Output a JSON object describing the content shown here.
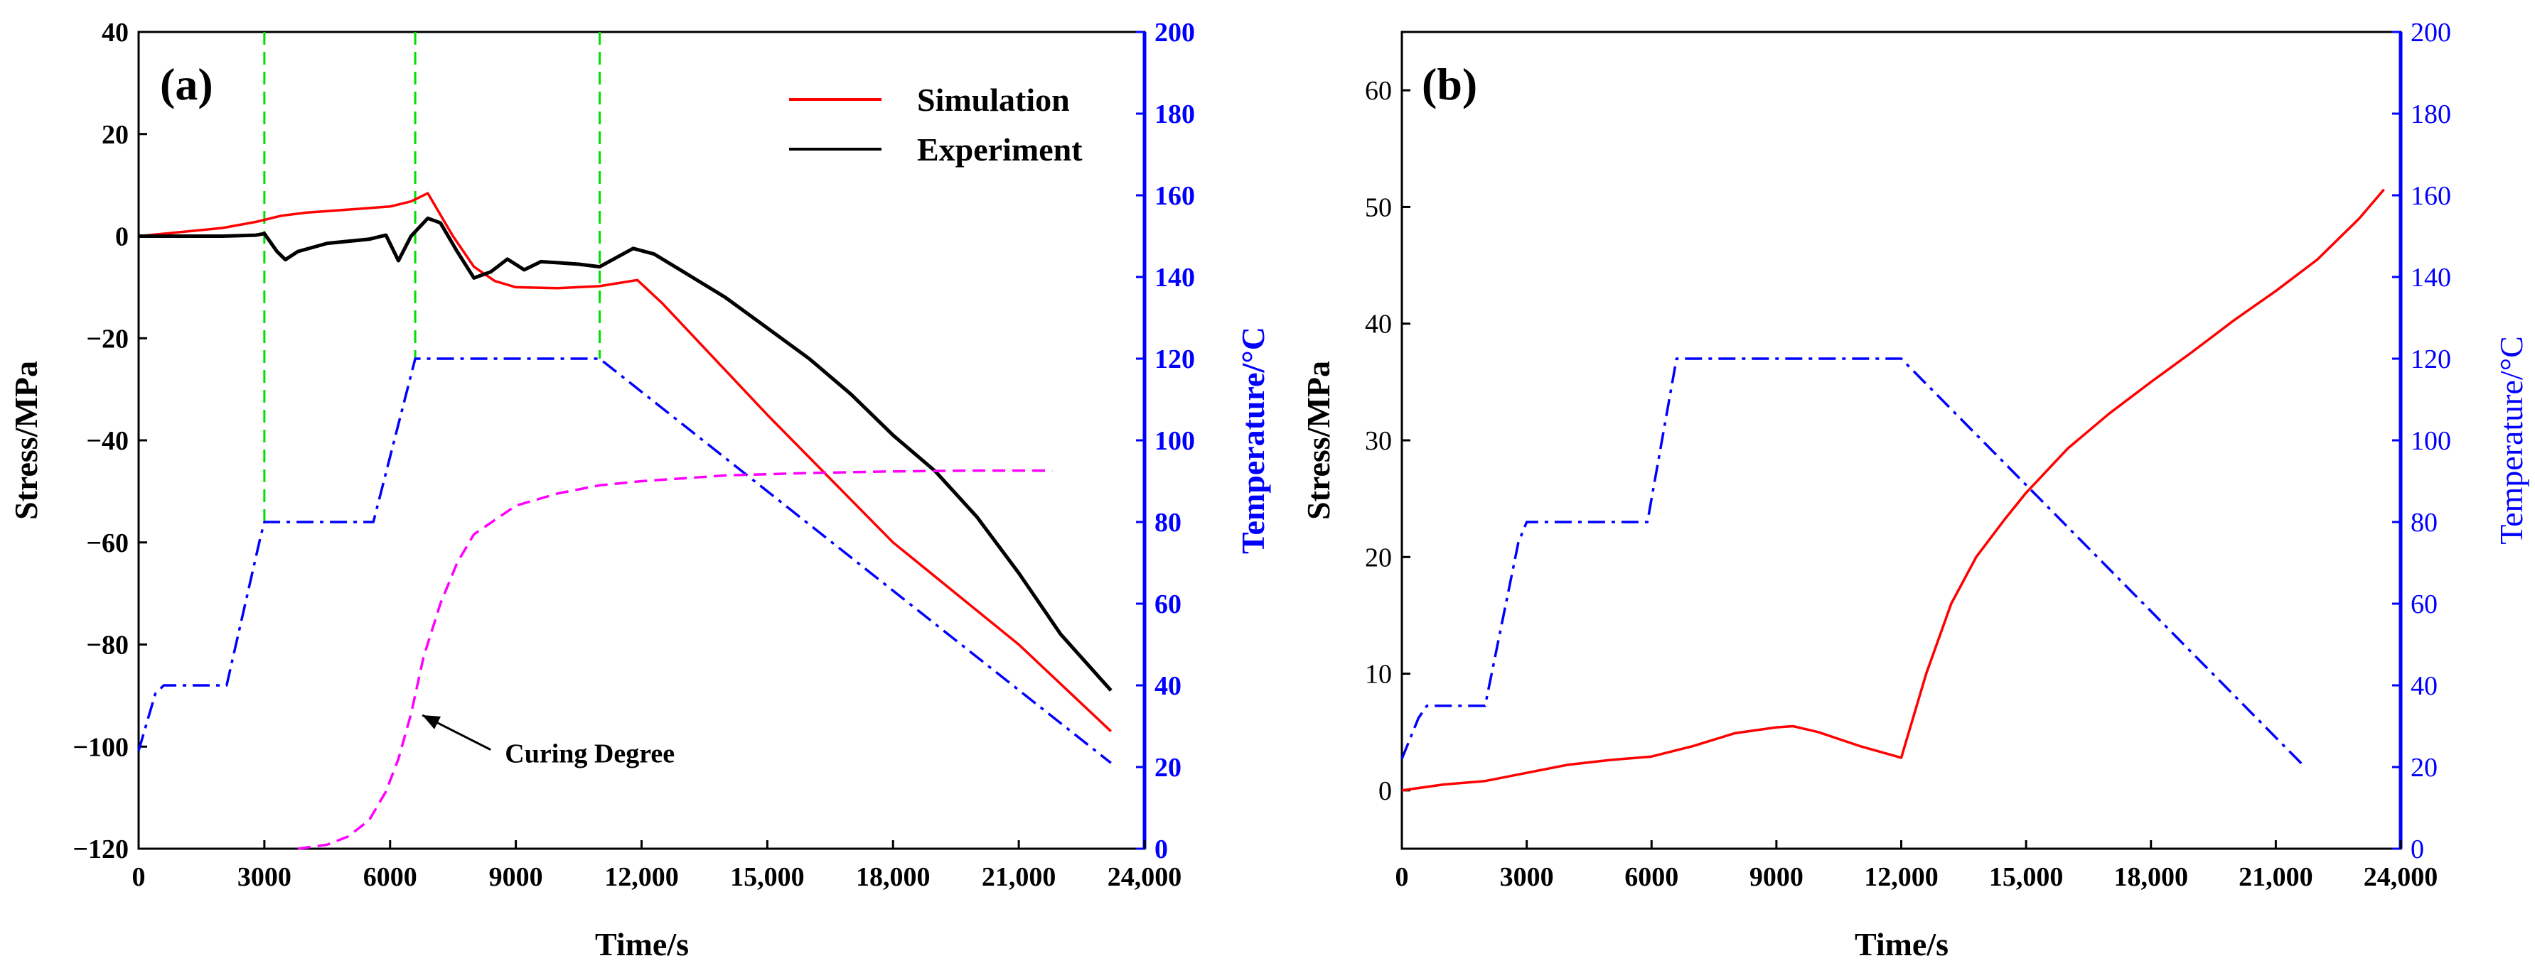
{
  "chart_data": [
    {
      "panel": "(a)",
      "type": "line",
      "xlabel": "Time/s",
      "ylabel": "Stress/MPa",
      "y2label": "Temperature/°C",
      "xlim": [
        0,
        24000
      ],
      "ylim": [
        -120,
        40
      ],
      "y2lim": [
        0,
        200
      ],
      "xticks": [
        "0",
        "3000",
        "6000",
        "9000",
        "12,000",
        "15,000",
        "18,000",
        "21,000",
        "24,000"
      ],
      "xtick_values": [
        0,
        3000,
        6000,
        9000,
        12000,
        15000,
        18000,
        21000,
        24000
      ],
      "yticks": [
        "40",
        "20",
        "0",
        "−20",
        "−40",
        "−60",
        "−80",
        "−100",
        "−120"
      ],
      "ytick_values": [
        40,
        20,
        0,
        -20,
        -40,
        -60,
        -80,
        -100,
        -120
      ],
      "y2ticks": [
        "200",
        "180",
        "160",
        "140",
        "120",
        "100",
        "80",
        "60",
        "40",
        "20",
        "0"
      ],
      "y2tick_values": [
        200,
        180,
        160,
        140,
        120,
        100,
        80,
        60,
        40,
        20,
        0
      ],
      "legend": [
        {
          "name": "Simulation",
          "color": "#ff0000"
        },
        {
          "name": "Experiment",
          "color": "#000000"
        }
      ],
      "legend_position": "top-right",
      "annotation": "Curing Degree",
      "annotation_target": [
        6600,
        -93
      ],
      "annotation_text_at": [
        8400,
        -102
      ],
      "vlines": [
        3000,
        6600,
        11000
      ],
      "series": [
        {
          "name": "Simulation",
          "axis": "left",
          "color": "#ff0000",
          "dash": "solid",
          "x": [
            0,
            1000,
            2000,
            2800,
            3400,
            4000,
            5000,
            6000,
            6500,
            6900,
            7500,
            8000,
            8500,
            9000,
            10000,
            11000,
            11900,
            12500,
            15000,
            18000,
            21000,
            23200
          ],
          "y": [
            0,
            0.8,
            1.6,
            2.8,
            4,
            4.6,
            5.2,
            5.8,
            6.8,
            8.4,
            0,
            -6,
            -8.8,
            -10,
            -10.2,
            -9.8,
            -8.6,
            -13.2,
            -35,
            -60,
            -80,
            -97
          ]
        },
        {
          "name": "Experiment",
          "axis": "left",
          "color": "#000000",
          "dash": "solid",
          "x": [
            0,
            1000,
            2000,
            2800,
            3000,
            3300,
            3500,
            3800,
            4500,
            5500,
            5900,
            6200,
            6500,
            6900,
            7200,
            7600,
            8000,
            8400,
            8800,
            9200,
            9600,
            10000,
            10500,
            11000,
            11400,
            11800,
            12300,
            13000,
            14000,
            15000,
            16000,
            17000,
            18000,
            19000,
            20000,
            21000,
            22000,
            23200
          ],
          "y": [
            0,
            0,
            0,
            0.2,
            0.5,
            -3,
            -4.6,
            -3,
            -1.4,
            -0.6,
            0.2,
            -4.8,
            0,
            3.5,
            2.6,
            -3,
            -8.2,
            -7,
            -4.5,
            -6.6,
            -5,
            -5.2,
            -5.5,
            -6,
            -4.2,
            -2.4,
            -3.5,
            -7,
            -12,
            -18,
            -24,
            -31,
            -39,
            -46,
            -55,
            -66,
            -78,
            -89
          ]
        },
        {
          "name": "Temperature",
          "axis": "right",
          "color": "#0000ff",
          "dash": "dashdot",
          "x": [
            0,
            400,
            600,
            2100,
            2900,
            3000,
            5600,
            6600,
            11000,
            23200
          ],
          "y": [
            24,
            38,
            40,
            40,
            76,
            80,
            80,
            120,
            120,
            21
          ]
        },
        {
          "name": "Curing Degree",
          "axis": "right",
          "color": "#ff00ff",
          "dash": "dashed",
          "x": [
            3800,
            4500,
            5000,
            5500,
            5900,
            6200,
            6500,
            6800,
            7200,
            7600,
            8000,
            9000,
            10000,
            11000,
            12000,
            14000,
            16000,
            18000,
            20000,
            21800
          ],
          "y": [
            0,
            1,
            3,
            7,
            14,
            22,
            33,
            47,
            60,
            70,
            77,
            84,
            87,
            89,
            90,
            91.4,
            92,
            92.4,
            92.6,
            92.6
          ]
        }
      ]
    },
    {
      "panel": "(b)",
      "type": "line",
      "xlabel": "Time/s",
      "ylabel": "Stress/MPa",
      "y2label": "Temperature/°C",
      "xlim": [
        0,
        24000
      ],
      "ylim": [
        -5,
        65
      ],
      "y2lim": [
        0,
        200
      ],
      "xticks": [
        "0",
        "3000",
        "6000",
        "9000",
        "12,000",
        "15,000",
        "18,000",
        "21,000",
        "24,000"
      ],
      "xtick_values": [
        0,
        3000,
        6000,
        9000,
        12000,
        15000,
        18000,
        21000,
        24000
      ],
      "yticks": [
        "60",
        "50",
        "40",
        "30",
        "20",
        "10",
        "0"
      ],
      "ytick_values": [
        60,
        50,
        40,
        30,
        20,
        10,
        0
      ],
      "y2ticks": [
        "200",
        "180",
        "160",
        "140",
        "120",
        "100",
        "80",
        "60",
        "40",
        "20",
        "0"
      ],
      "y2tick_values": [
        200,
        180,
        160,
        140,
        120,
        100,
        80,
        60,
        40,
        20,
        0
      ],
      "series": [
        {
          "name": "Stress",
          "axis": "left",
          "color": "#ff0000",
          "dash": "solid",
          "x": [
            0,
            1000,
            2000,
            3000,
            4000,
            5000,
            6000,
            7000,
            8000,
            9000,
            9400,
            10000,
            11000,
            12000,
            12600,
            13200,
            13800,
            14500,
            15000,
            16000,
            17000,
            18000,
            19000,
            20000,
            21000,
            22000,
            23000,
            23600
          ],
          "y": [
            0,
            0.5,
            0.8,
            1.5,
            2.2,
            2.6,
            2.9,
            3.8,
            4.9,
            5.4,
            5.5,
            5,
            3.8,
            2.8,
            10,
            16,
            20,
            23.3,
            25.5,
            29.3,
            32.3,
            35,
            37.6,
            40.3,
            42.8,
            45.5,
            49,
            51.5
          ]
        },
        {
          "name": "Temperature",
          "axis": "right",
          "color": "#0000ff",
          "dash": "dashdot",
          "x": [
            0,
            400,
            600,
            2000,
            2800,
            3000,
            5900,
            6600,
            12000,
            21700
          ],
          "y": [
            22,
            32,
            35,
            35,
            75,
            80,
            80,
            120,
            120,
            20
          ]
        }
      ]
    }
  ]
}
